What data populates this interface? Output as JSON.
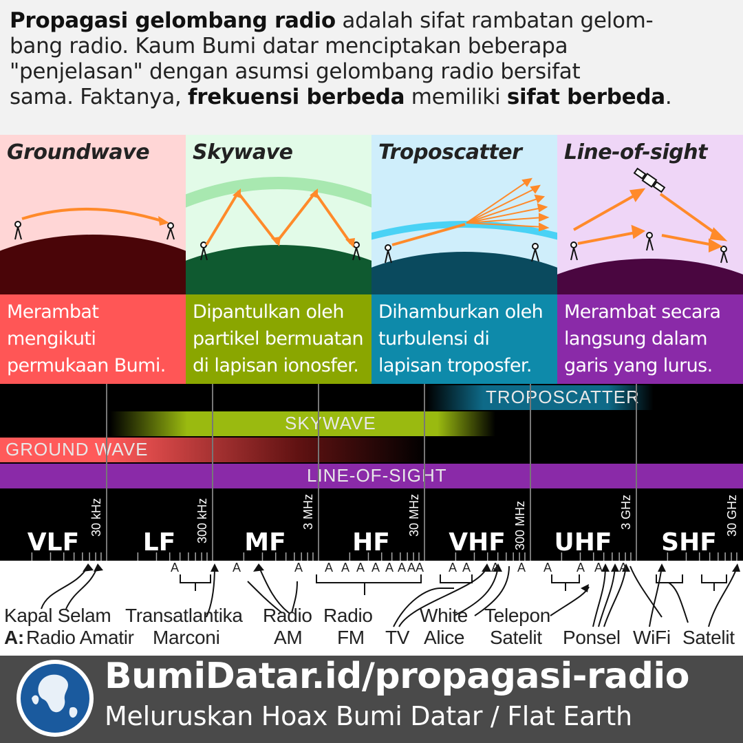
{
  "intro": {
    "l1_b": "Propagasi gelombang radio",
    "l1_t": " adalah sifat rambatan gelom-",
    "l2": "bang radio. Kaum Bumi datar menciptakan beberapa",
    "l3": "\"penjelasan\" dengan asumsi gelombang radio bersifat",
    "l4_a": "sama. Faktanya, ",
    "l4_b1": "frekuensi berbeda",
    "l4_m": " memiliki ",
    "l4_b2": "sifat berbeda",
    "l4_e": "."
  },
  "panels": [
    {
      "title": "Groundwave",
      "desc": [
        "Merambat",
        "mengikuti",
        "permukaan Bumi."
      ],
      "bg": "#ffd6d6",
      "ground": "#4a0508",
      "desc_bg": "#ff5656"
    },
    {
      "title": "Skywave",
      "desc": [
        "Dipantulkan oleh",
        "partikel bermuatan",
        "di lapisan ionosfer."
      ],
      "bg": "#e2fbe8",
      "ground": "#0f5a30",
      "desc_bg": "#8aa600"
    },
    {
      "title": "Troposcatter",
      "desc": [
        "Dihamburkan oleh",
        "turbulensi di",
        "lapisan troposfer."
      ],
      "bg": "#cfeefb",
      "ground": "#0a4a5e",
      "desc_bg": "#0e8aaa"
    },
    {
      "title": "Line-of-sight",
      "desc": [
        "Merambat secara",
        "langsung dalam",
        "garis yang lurus."
      ],
      "bg": "#efd6f7",
      "ground": "#4a0640",
      "desc_bg": "#8a2aa8"
    }
  ],
  "bands": {
    "troposcatter": "TROPOSCATTER",
    "skywave": "SKYWAVE",
    "groundwave": "GROUND WAVE",
    "los": "LINE-OF-SIGHT"
  },
  "frequency_bands": [
    "VLF",
    "LF",
    "MF",
    "HF",
    "VHF",
    "UHF",
    "SHF"
  ],
  "boundaries": [
    "30 kHz",
    "300 kHz",
    "3 MHz",
    "30 MHz",
    "300 MHz",
    "3 GHz",
    "30 GHz"
  ],
  "amateur_marker": "A",
  "applications": {
    "kapal_selam": "Kapal Selam",
    "radio_amatir_key": "A:",
    "radio_amatir": "Radio Amatir",
    "transatlantika": "Transatlantika",
    "marconi": "Marconi",
    "radio_am_1": "Radio",
    "radio_am_2": "AM",
    "radio_fm_1": "Radio",
    "radio_fm_2": "FM",
    "tv": "TV",
    "white_alice_1": "White",
    "white_alice_2": "Alice",
    "telepon_satelit_1": "Telepon",
    "telepon_satelit_2": "Satelit",
    "ponsel": "Ponsel",
    "wifi": "WiFi",
    "satelit": "Satelit"
  },
  "footer": {
    "url": "BumiDatar.id/propagasi-radio",
    "tagline": "Meluruskan Hoax Bumi Datar / Flat Earth"
  },
  "colors": {
    "arrow": "#ff8a2a",
    "groundwave_band": "#ff5a5a",
    "skywave_band": "#9aba10",
    "troposcatter_band": "#0e6a88",
    "los_band": "#8a2aa8",
    "footer_bg": "#4a4a4a",
    "globe_blue": "#1a5a9e"
  }
}
